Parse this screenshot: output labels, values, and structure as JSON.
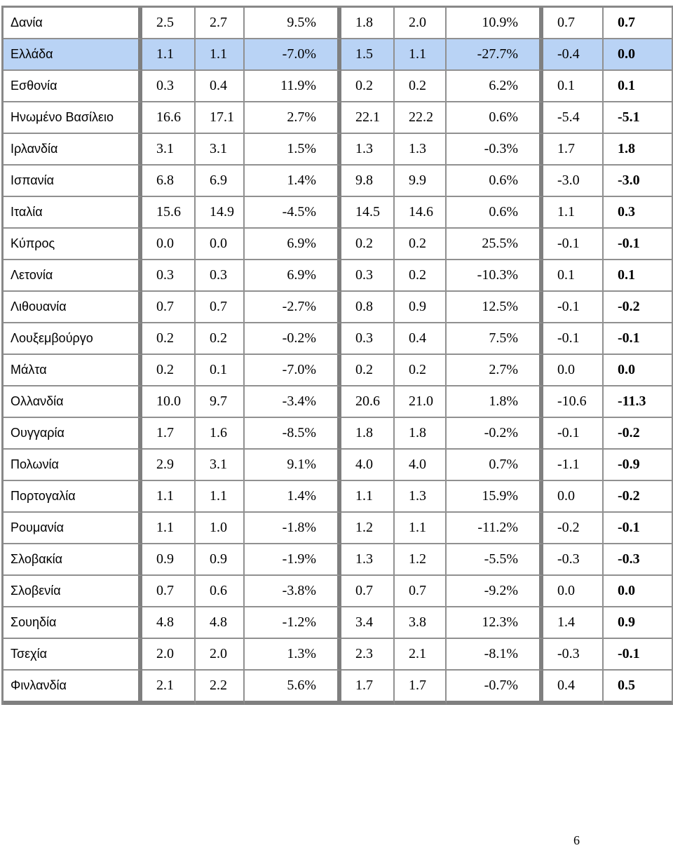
{
  "rows": [
    [
      "Δανία",
      "2.5",
      "2.7",
      "9.5%",
      "1.8",
      "2.0",
      "10.9%",
      "0.7",
      "0.7"
    ],
    [
      "Ελλάδα",
      "1.1",
      "1.1",
      "-7.0%",
      "1.5",
      "1.1",
      "-27.7%",
      "-0.4",
      "0.0"
    ],
    [
      "Εσθονία",
      "0.3",
      "0.4",
      "11.9%",
      "0.2",
      "0.2",
      "6.2%",
      "0.1",
      "0.1"
    ],
    [
      "Ηνωμένο Βασίλειο",
      "16.6",
      "17.1",
      "2.7%",
      "22.1",
      "22.2",
      "0.6%",
      "-5.4",
      "-5.1"
    ],
    [
      "Ιρλανδία",
      "3.1",
      "3.1",
      "1.5%",
      "1.3",
      "1.3",
      "-0.3%",
      "1.7",
      "1.8"
    ],
    [
      "Ισπανία",
      "6.8",
      "6.9",
      "1.4%",
      "9.8",
      "9.9",
      "0.6%",
      "-3.0",
      "-3.0"
    ],
    [
      "Ιταλία",
      "15.6",
      "14.9",
      "-4.5%",
      "14.5",
      "14.6",
      "0.6%",
      "1.1",
      "0.3"
    ],
    [
      "Κύπρος",
      "0.0",
      "0.0",
      "6.9%",
      "0.2",
      "0.2",
      "25.5%",
      "-0.1",
      "-0.1"
    ],
    [
      "Λετονία",
      "0.3",
      "0.3",
      "6.9%",
      "0.3",
      "0.2",
      "-10.3%",
      "0.1",
      "0.1"
    ],
    [
      "Λιθουανία",
      "0.7",
      "0.7",
      "-2.7%",
      "0.8",
      "0.9",
      "12.5%",
      "-0.1",
      "-0.2"
    ],
    [
      "Λουξεμβούργο",
      "0.2",
      "0.2",
      "-0.2%",
      "0.3",
      "0.4",
      "7.5%",
      "-0.1",
      "-0.1"
    ],
    [
      "Μάλτα",
      "0.2",
      "0.1",
      "-7.0%",
      "0.2",
      "0.2",
      "2.7%",
      "0.0",
      "0.0"
    ],
    [
      "Ολλανδία",
      "10.0",
      "9.7",
      "-3.4%",
      "20.6",
      "21.0",
      "1.8%",
      "-10.6",
      "-11.3"
    ],
    [
      "Ουγγαρία",
      "1.7",
      "1.6",
      "-8.5%",
      "1.8",
      "1.8",
      "-0.2%",
      "-0.1",
      "-0.2"
    ],
    [
      "Πολωνία",
      "2.9",
      "3.1",
      "9.1%",
      "4.0",
      "4.0",
      "0.7%",
      "-1.1",
      "-0.9"
    ],
    [
      "Πορτογαλία",
      "1.1",
      "1.1",
      "1.4%",
      "1.1",
      "1.3",
      "15.9%",
      "0.0",
      "-0.2"
    ],
    [
      "Ρουμανία",
      "1.1",
      "1.0",
      "-1.8%",
      "1.2",
      "1.1",
      "-11.2%",
      "-0.2",
      "-0.1"
    ],
    [
      "Σλοβακία",
      "0.9",
      "0.9",
      "-1.9%",
      "1.3",
      "1.2",
      "-5.5%",
      "-0.3",
      "-0.3"
    ],
    [
      "Σλοβενία",
      "0.7",
      "0.6",
      "-3.8%",
      "0.7",
      "0.7",
      "-9.2%",
      "0.0",
      "0.0"
    ],
    [
      "Σουηδία",
      "4.8",
      "4.8",
      "-1.2%",
      "3.4",
      "3.8",
      "12.3%",
      "1.4",
      "0.9"
    ],
    [
      "Τσεχία",
      "2.0",
      "2.0",
      "1.3%",
      "2.3",
      "2.1",
      "-8.1%",
      "-0.3",
      "-0.1"
    ],
    [
      "Φινλανδία",
      "2.1",
      "2.2",
      "5.6%",
      "1.7",
      "1.7",
      "-0.7%",
      "0.4",
      "0.5"
    ]
  ],
  "highlight_row": 1,
  "highlight_color": "#b9d3f5",
  "page_number": "6"
}
